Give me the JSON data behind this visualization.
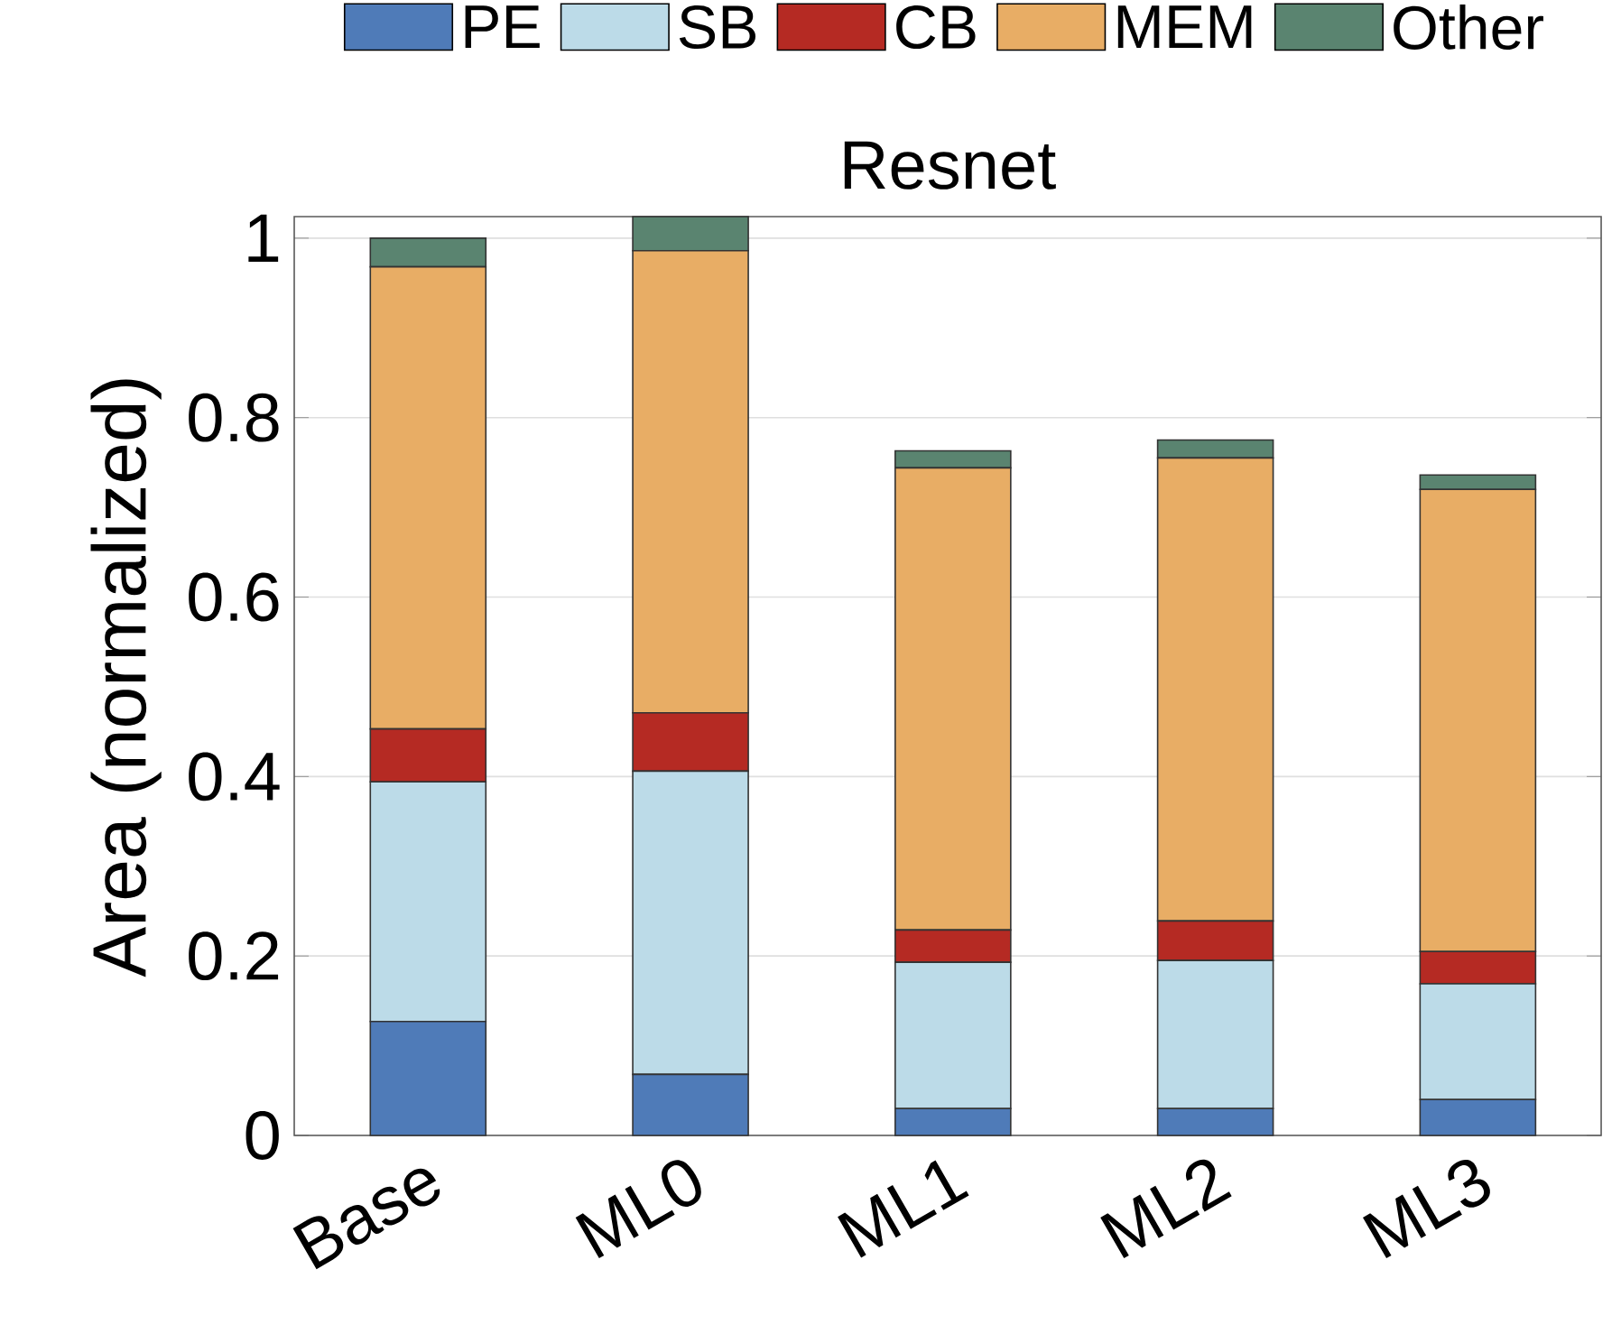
{
  "chart_data": {
    "type": "bar",
    "title": "Resnet",
    "ylabel": "Area (normalized)",
    "stacked": true,
    "categories": [
      "Base",
      "ML0",
      "ML1",
      "ML2",
      "ML3"
    ],
    "series": [
      {
        "name": "PE",
        "color": "#4f7bb8",
        "values": [
          0.127,
          0.068,
          0.03,
          0.03,
          0.04
        ]
      },
      {
        "name": "SB",
        "color": "#bcdbe8",
        "values": [
          0.267,
          0.338,
          0.163,
          0.165,
          0.129
        ]
      },
      {
        "name": "CB",
        "color": "#b52a23",
        "values": [
          0.059,
          0.065,
          0.036,
          0.044,
          0.036
        ]
      },
      {
        "name": "MEM",
        "color": "#e8ad65",
        "values": [
          0.515,
          0.515,
          0.515,
          0.516,
          0.515
        ]
      },
      {
        "name": "Other",
        "color": "#5a8470",
        "values": [
          0.032,
          0.038,
          0.019,
          0.02,
          0.016
        ]
      }
    ],
    "ylim": [
      0,
      1.024
    ],
    "yticks": [
      0,
      0.2,
      0.4,
      0.6,
      0.8,
      1
    ],
    "grid": "y",
    "legend": "top"
  }
}
